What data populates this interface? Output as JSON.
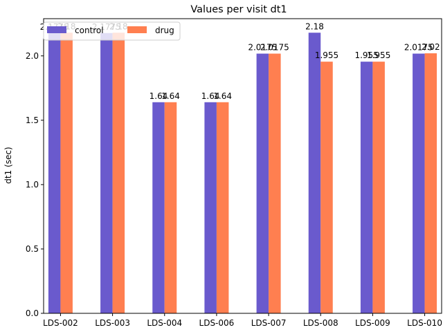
{
  "chart_data": {
    "type": "bar",
    "title": "Values per visit dt1",
    "xlabel": "",
    "ylabel": "dt1 (sec)",
    "categories": [
      "LDS-002",
      "LDS-003",
      "LDS-004",
      "LDS-006",
      "LDS-007",
      "LDS-008",
      "LDS-009",
      "LDS-010"
    ],
    "series": [
      {
        "name": "control",
        "color": "#6a5acd",
        "values": [
          2.1775,
          2.1775,
          1.64,
          1.64,
          2.0175,
          2.18,
          1.955,
          2.0175
        ],
        "labels": [
          "2.1775",
          "2.1775",
          "1.64",
          "1.64",
          "2.0175",
          "2.18",
          "1.955",
          "2.0175"
        ]
      },
      {
        "name": "drug",
        "color": "#ff7f50",
        "values": [
          2.18,
          2.18,
          1.64,
          1.64,
          2.0175,
          1.955,
          1.955,
          2.02
        ],
        "labels": [
          "2.18",
          "2.18",
          "1.64",
          "1.64",
          "2.0175",
          "1.955",
          "1.955",
          "2.02"
        ]
      }
    ],
    "yticks": [
      "0.0",
      "0.5",
      "1.0",
      "1.5",
      "2.0"
    ],
    "ylim": [
      0,
      2.289
    ],
    "grid": false,
    "legend": "top-left"
  }
}
